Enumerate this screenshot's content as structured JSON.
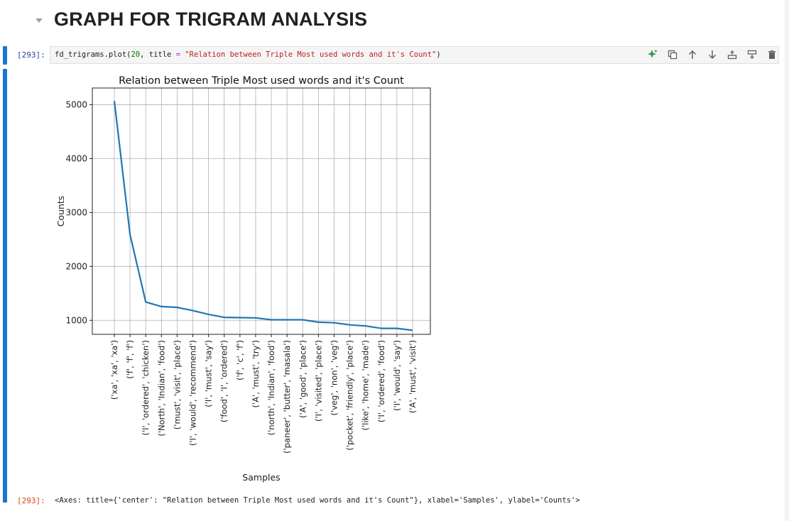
{
  "heading": {
    "title": "GRAPH FOR TRIGRAM ANALYSIS"
  },
  "input_cell": {
    "prompt": "[293]:",
    "code_prefix": "fd_trigrams.plot(",
    "code_num": "20",
    "code_mid": ", title ",
    "code_eq": "=",
    "code_space": " ",
    "code_str": "\"Relation between Triple Most used words and it's Count\"",
    "code_suffix": ")"
  },
  "toolbar": {
    "buttons": [
      "sparkle-icon",
      "duplicate-icon",
      "arrow-up-icon",
      "arrow-down-icon",
      "insert-above-icon",
      "insert-below-icon",
      "delete-icon"
    ],
    "accent": "#2e9d4f"
  },
  "output_cell": {
    "prompt": "[293]:",
    "repr": "<Axes: title={'center': \"Relation between Triple Most used words and it's Count\"}, xlabel='Samples', ylabel='Counts'>"
  },
  "chart_data": {
    "type": "line",
    "title": "Relation between Triple Most used words and it's Count",
    "xlabel": "Samples",
    "ylabel": "Counts",
    "categories": [
      "('xa', 'xa', 'xa')",
      "('f', 'f', 'f')",
      "('I', 'ordered', 'chicken')",
      "('North', 'Indian', 'food')",
      "('must', 'visit', 'place')",
      "('I', 'would', 'recommend')",
      "('I', 'must', 'say')",
      "('food', 'I', 'ordered')",
      "('f', 'c', 'f')",
      "('A', 'must', 'try')",
      "('north', 'Indian', 'food')",
      "('paneer', 'butter', 'masala')",
      "('A', 'good', 'place')",
      "('I', 'visited', 'place')",
      "('veg', 'non', 'veg')",
      "('pocket', 'friendly', 'place')",
      "('like', 'home', 'made')",
      "('I', 'ordered', 'food')",
      "('I', 'would', 'say')",
      "('A', 'must', 'visit')"
    ],
    "values": [
      5070,
      2590,
      1340,
      1255,
      1240,
      1180,
      1110,
      1055,
      1050,
      1045,
      1010,
      1010,
      1010,
      965,
      955,
      915,
      895,
      850,
      850,
      815
    ],
    "ylim": [
      740,
      5310
    ],
    "yticks": [
      1000,
      2000,
      3000,
      4000,
      5000
    ],
    "grid": true,
    "line_color": "#1f77b4"
  }
}
